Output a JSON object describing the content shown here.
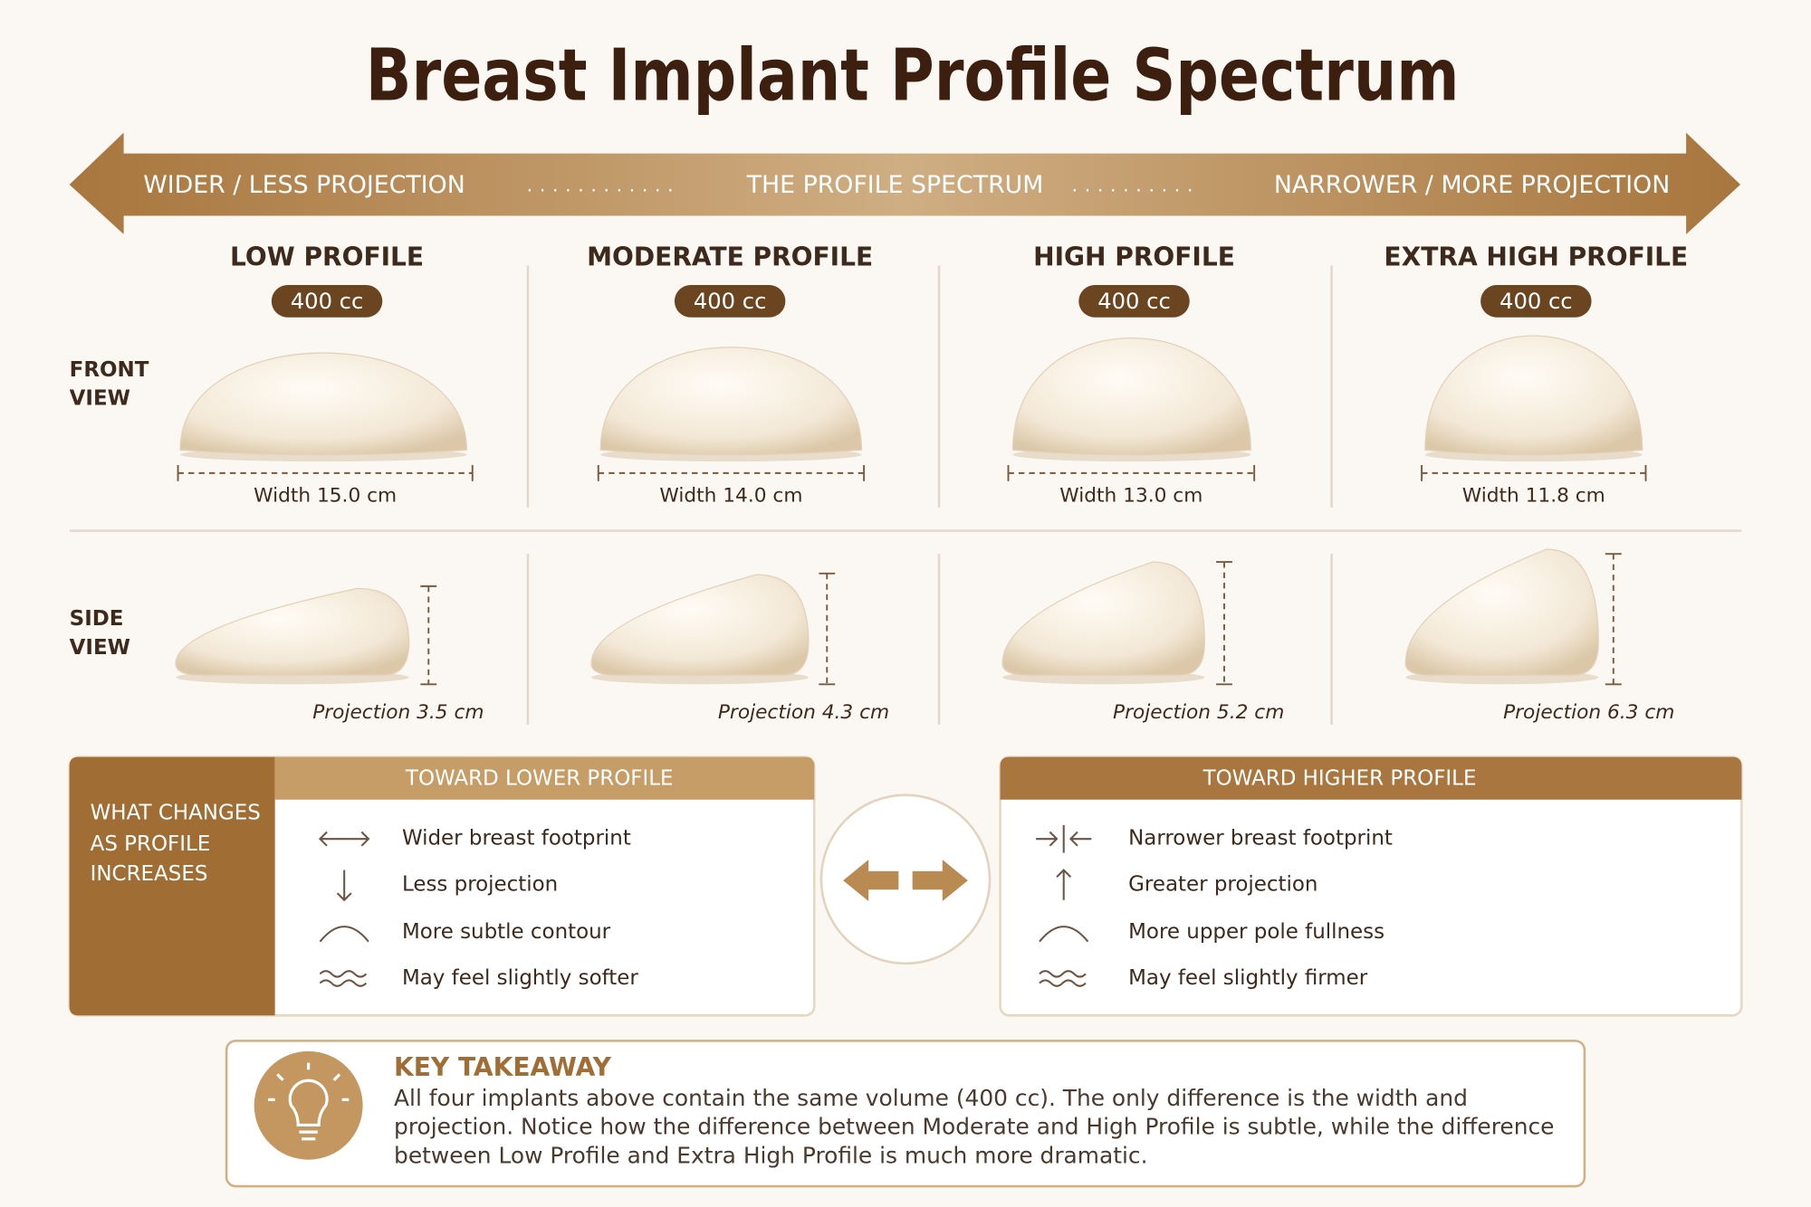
{
  "title": "Breast Implant Profile Spectrum",
  "spectrum": {
    "left": "WIDER / LESS PROJECTION",
    "center": "THE PROFILE SPECTRUM",
    "right": "NARROWER / MORE PROJECTION"
  },
  "row_labels": {
    "front": "FRONT VIEW",
    "side": "SIDE VIEW"
  },
  "profiles": [
    {
      "name": "LOW PROFILE",
      "volume": "400 cc",
      "width": "Width 15.0 cm",
      "projection": "Projection 3.5 cm"
    },
    {
      "name": "MODERATE PROFILE",
      "volume": "400 cc",
      "width": "Width 14.0 cm",
      "projection": "Projection 4.3 cm"
    },
    {
      "name": "HIGH PROFILE",
      "volume": "400 cc",
      "width": "Width 13.0 cm",
      "projection": "Projection 5.2 cm"
    },
    {
      "name": "EXTRA HIGH PROFILE",
      "volume": "400 cc",
      "width": "Width 11.8 cm",
      "projection": "Projection 6.3 cm"
    }
  ],
  "changes": {
    "label": "WHAT CHANGES AS PROFILE INCREASES",
    "lower": {
      "title": "TOWARD LOWER PROFILE",
      "items": [
        "Wider breast footprint",
        "Less projection",
        "More subtle contour",
        "May feel slightly softer"
      ]
    },
    "higher": {
      "title": "TOWARD HIGHER PROFILE",
      "items": [
        "Narrower breast footprint",
        "Greater projection",
        "More upper pole fullness",
        "May feel slightly firmer"
      ]
    }
  },
  "takeaway": {
    "title": "KEY TAKEAWAY",
    "text": "All four implants above contain the same volume (400 cc). The only difference is the width and projection. Notice how the difference between Moderate and High Profile is subtle, while the difference between Low Profile and Extra High Profile is much more dramatic."
  }
}
